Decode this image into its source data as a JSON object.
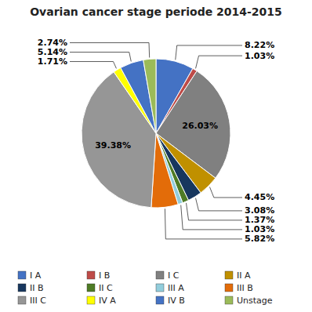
{
  "chart_data": {
    "type": "pie",
    "title": "Ovarian cancer stage periode 2014-2015",
    "categories": [
      "I A",
      "I B",
      "I C",
      "II A",
      "II B",
      "II C",
      "III A",
      "III B",
      "III C",
      "IV A",
      "IV B",
      "Unstage"
    ],
    "values": [
      8.22,
      1.03,
      26.03,
      4.45,
      3.08,
      1.37,
      1.03,
      5.82,
      39.38,
      1.71,
      5.14,
      2.74
    ],
    "colors": [
      "#4472c4",
      "#be4b48",
      "#808080",
      "#c09000",
      "#17375e",
      "#4e7b25",
      "#92cddc",
      "#e36c09",
      "#969696",
      "#ffff00",
      "#4472c4",
      "#9bbb59"
    ],
    "data_labels": true,
    "value_labels": [
      "8.22%",
      "1.03%",
      "26.03%",
      "4.45%",
      "3.08%",
      "1.37%",
      "1.03%",
      "5.82%",
      "39.38%",
      "1.71%",
      "5.14%",
      "2.74%"
    ],
    "legend": "bottom"
  }
}
